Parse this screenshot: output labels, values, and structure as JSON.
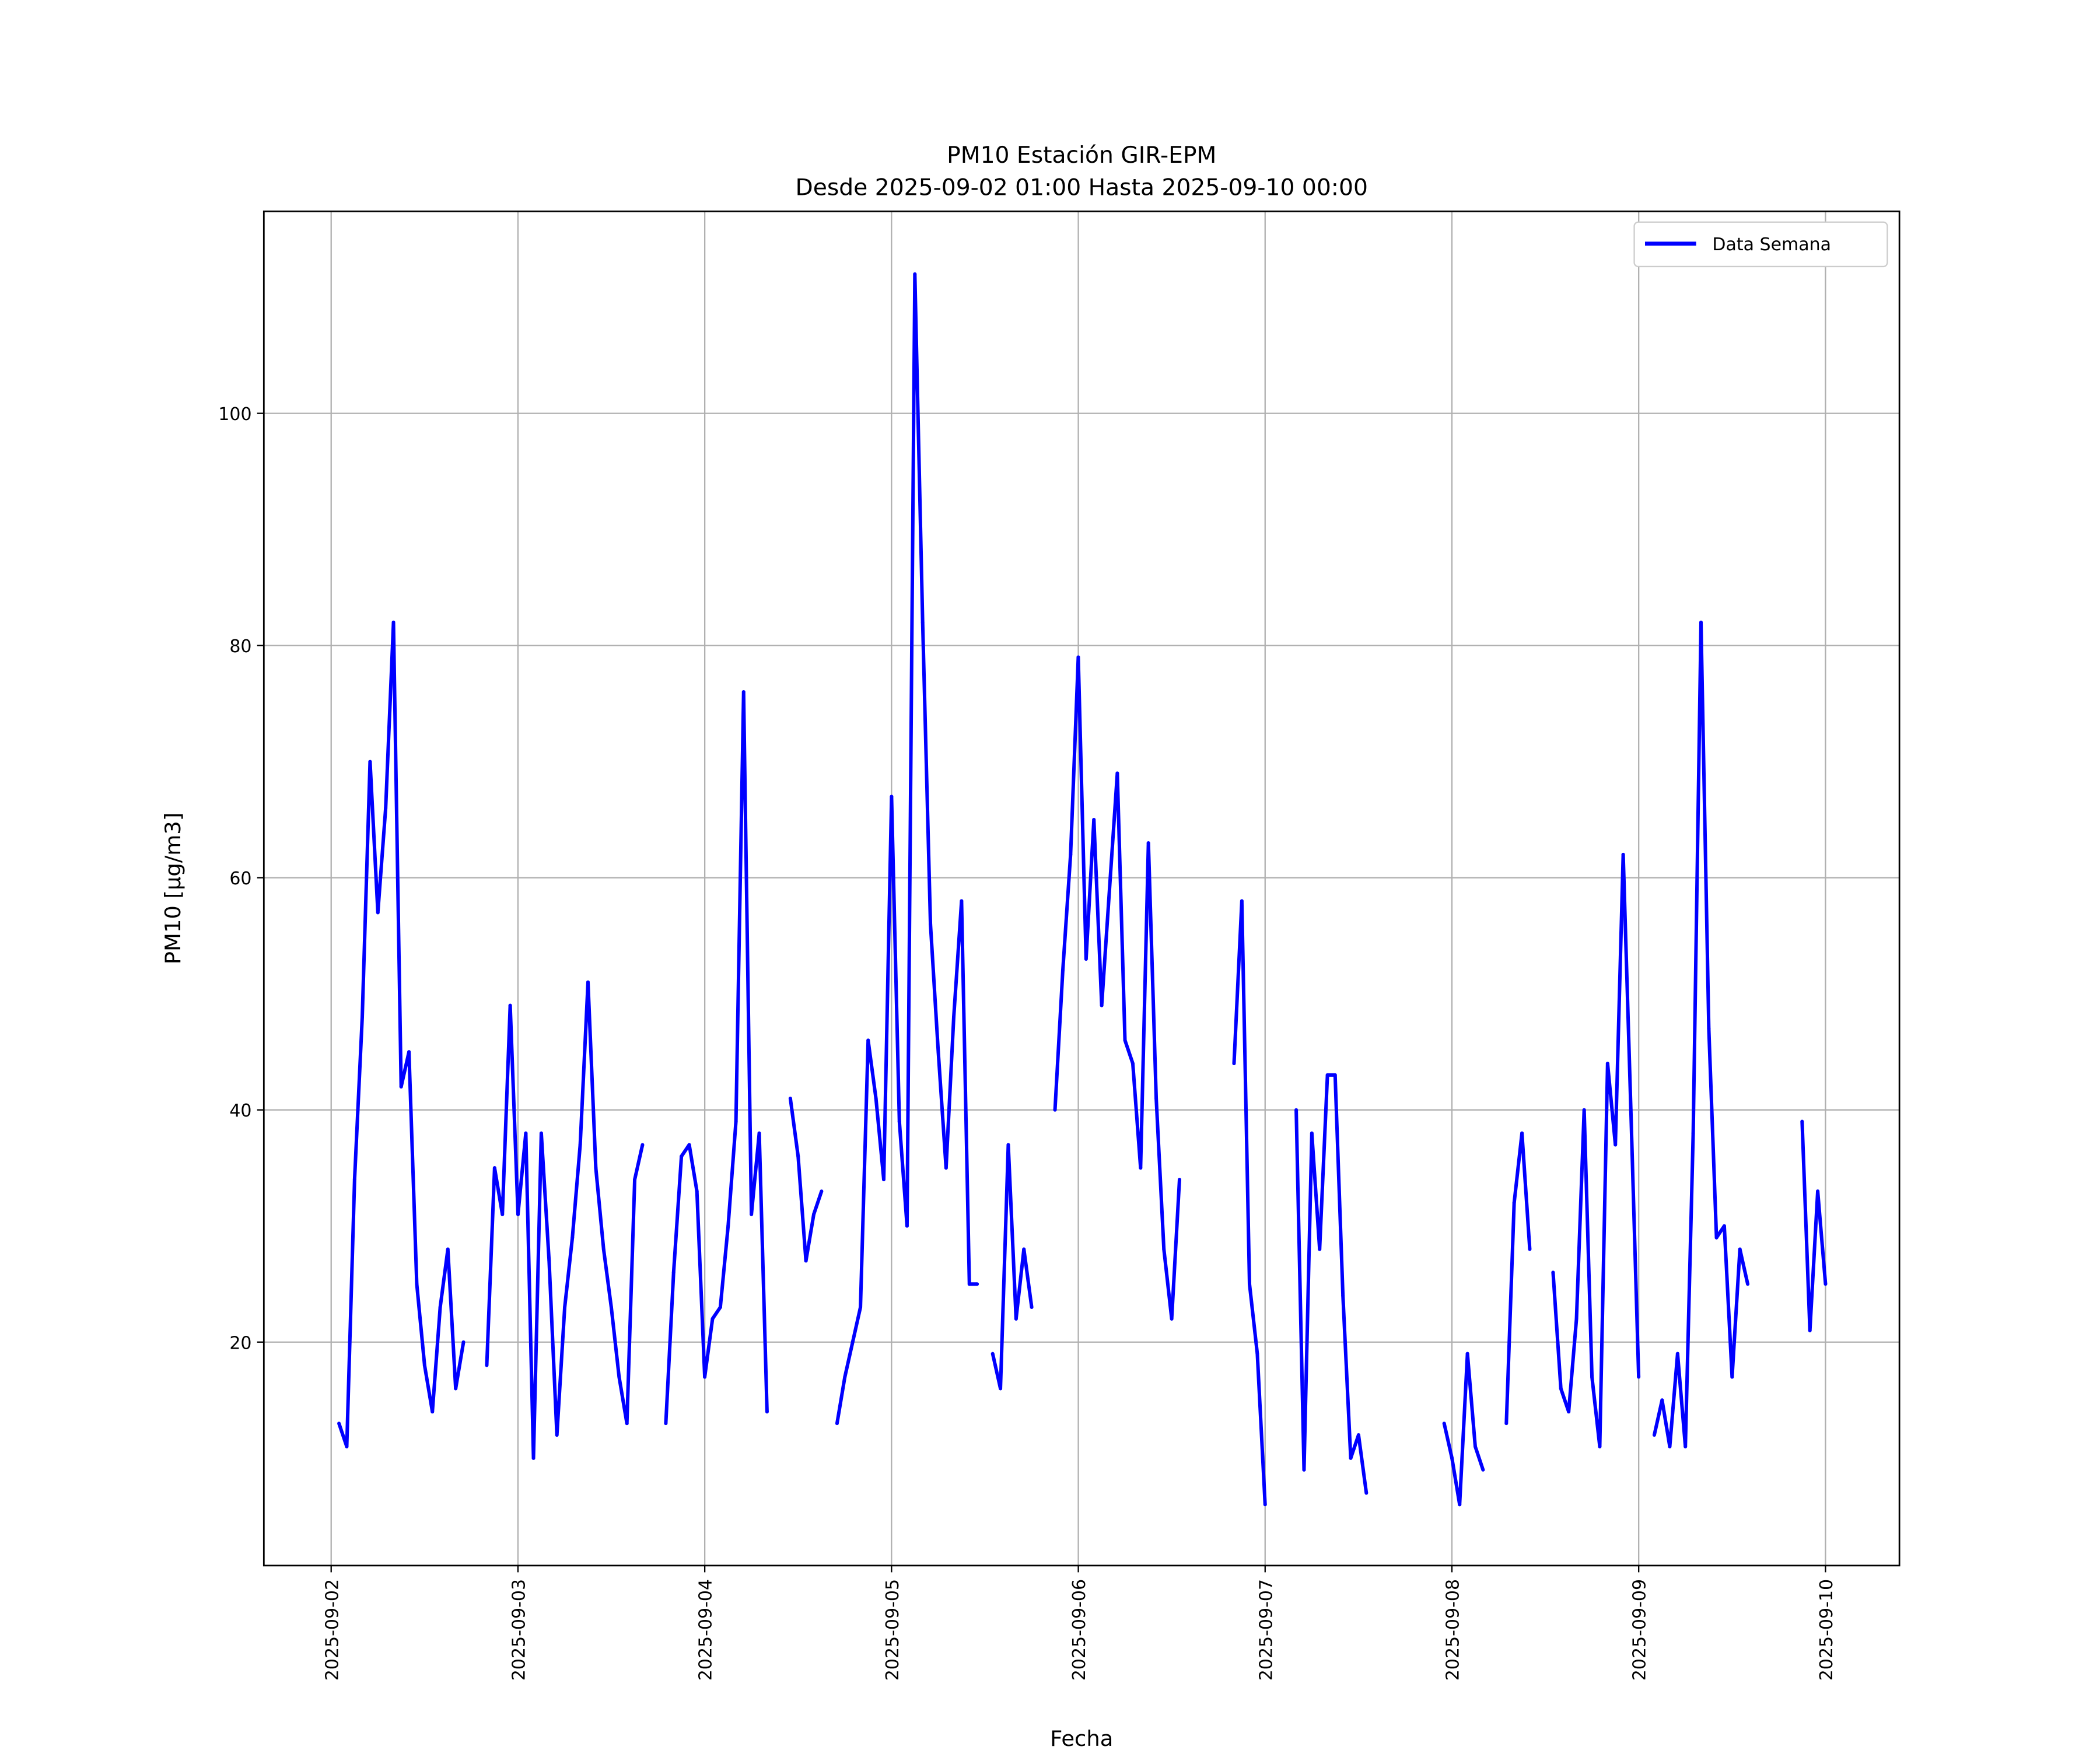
{
  "chart_data": {
    "type": "line",
    "title": "PM10 Estación GIR-EPM",
    "subtitle": "Desde 2025-09-02 01:00 Hasta 2025-09-10 00:00",
    "xlabel": "Fecha",
    "ylabel": "PM10 [μg/m3]",
    "xlim": [
      "2025-09-01 15:21",
      "2025-09-10 09:30"
    ],
    "ylim": [
      0.75,
      117.4
    ],
    "grid": true,
    "legend_placement": "top-right",
    "x_ticks": [
      "2025-09-02",
      "2025-09-03",
      "2025-09-04",
      "2025-09-05",
      "2025-09-06",
      "2025-09-07",
      "2025-09-08",
      "2025-09-09",
      "2025-09-10"
    ],
    "y_ticks": [
      20,
      40,
      60,
      80,
      100
    ],
    "series": [
      {
        "name": "Data Semana",
        "color": "#0000ff",
        "x": [
          "2025-09-02 01:00",
          "2025-09-02 02:00",
          "2025-09-02 03:00",
          "2025-09-02 04:00",
          "2025-09-02 05:00",
          "2025-09-02 06:00",
          "2025-09-02 07:00",
          "2025-09-02 08:00",
          "2025-09-02 09:00",
          "2025-09-02 10:00",
          "2025-09-02 11:00",
          "2025-09-02 12:00",
          "2025-09-02 13:00",
          "2025-09-02 14:00",
          "2025-09-02 15:00",
          "2025-09-02 16:00",
          "2025-09-02 17:00",
          "2025-09-02 18:00",
          "2025-09-02 19:00",
          "2025-09-02 20:00",
          "2025-09-02 21:00",
          "2025-09-02 22:00",
          "2025-09-02 23:00",
          "2025-09-03 00:00",
          "2025-09-03 01:00",
          "2025-09-03 02:00",
          "2025-09-03 03:00",
          "2025-09-03 04:00",
          "2025-09-03 05:00",
          "2025-09-03 06:00",
          "2025-09-03 07:00",
          "2025-09-03 08:00",
          "2025-09-03 09:00",
          "2025-09-03 10:00",
          "2025-09-03 11:00",
          "2025-09-03 12:00",
          "2025-09-03 13:00",
          "2025-09-03 14:00",
          "2025-09-03 15:00",
          "2025-09-03 16:00",
          "2025-09-03 17:00",
          "2025-09-03 18:00",
          "2025-09-03 19:00",
          "2025-09-03 20:00",
          "2025-09-03 21:00",
          "2025-09-03 22:00",
          "2025-09-03 23:00",
          "2025-09-04 00:00",
          "2025-09-04 01:00",
          "2025-09-04 02:00",
          "2025-09-04 03:00",
          "2025-09-04 04:00",
          "2025-09-04 05:00",
          "2025-09-04 06:00",
          "2025-09-04 07:00",
          "2025-09-04 08:00",
          "2025-09-04 09:00",
          "2025-09-04 10:00",
          "2025-09-04 11:00",
          "2025-09-04 12:00",
          "2025-09-04 13:00",
          "2025-09-04 14:00",
          "2025-09-04 15:00",
          "2025-09-04 16:00",
          "2025-09-04 17:00",
          "2025-09-04 18:00",
          "2025-09-04 19:00",
          "2025-09-04 20:00",
          "2025-09-04 21:00",
          "2025-09-04 22:00",
          "2025-09-04 23:00",
          "2025-09-05 00:00",
          "2025-09-05 01:00",
          "2025-09-05 02:00",
          "2025-09-05 03:00",
          "2025-09-05 04:00",
          "2025-09-05 05:00",
          "2025-09-05 06:00",
          "2025-09-05 07:00",
          "2025-09-05 08:00",
          "2025-09-05 09:00",
          "2025-09-05 10:00",
          "2025-09-05 11:00",
          "2025-09-05 12:00",
          "2025-09-05 13:00",
          "2025-09-05 14:00",
          "2025-09-05 15:00",
          "2025-09-05 16:00",
          "2025-09-05 17:00",
          "2025-09-05 18:00",
          "2025-09-05 19:00",
          "2025-09-05 20:00",
          "2025-09-05 21:00",
          "2025-09-05 22:00",
          "2025-09-05 23:00",
          "2025-09-06 00:00",
          "2025-09-06 01:00",
          "2025-09-06 02:00",
          "2025-09-06 03:00",
          "2025-09-06 04:00",
          "2025-09-06 05:00",
          "2025-09-06 06:00",
          "2025-09-06 07:00",
          "2025-09-06 08:00",
          "2025-09-06 09:00",
          "2025-09-06 10:00",
          "2025-09-06 11:00",
          "2025-09-06 12:00",
          "2025-09-06 13:00",
          "2025-09-06 14:00",
          "2025-09-06 15:00",
          "2025-09-06 16:00",
          "2025-09-06 17:00",
          "2025-09-06 18:00",
          "2025-09-06 19:00",
          "2025-09-06 20:00",
          "2025-09-06 21:00",
          "2025-09-06 22:00",
          "2025-09-06 23:00",
          "2025-09-07 00:00",
          "2025-09-07 01:00",
          "2025-09-07 02:00",
          "2025-09-07 03:00",
          "2025-09-07 04:00",
          "2025-09-07 05:00",
          "2025-09-07 06:00",
          "2025-09-07 07:00",
          "2025-09-07 08:00",
          "2025-09-07 09:00",
          "2025-09-07 10:00",
          "2025-09-07 11:00",
          "2025-09-07 12:00",
          "2025-09-07 13:00",
          "2025-09-07 14:00",
          "2025-09-07 15:00",
          "2025-09-07 16:00",
          "2025-09-07 17:00",
          "2025-09-07 18:00",
          "2025-09-07 19:00",
          "2025-09-07 20:00",
          "2025-09-07 21:00",
          "2025-09-07 22:00",
          "2025-09-07 23:00",
          "2025-09-08 00:00",
          "2025-09-08 01:00",
          "2025-09-08 02:00",
          "2025-09-08 03:00",
          "2025-09-08 04:00",
          "2025-09-08 05:00",
          "2025-09-08 06:00",
          "2025-09-08 07:00",
          "2025-09-08 08:00",
          "2025-09-08 09:00",
          "2025-09-08 10:00",
          "2025-09-08 11:00",
          "2025-09-08 12:00",
          "2025-09-08 13:00",
          "2025-09-08 14:00",
          "2025-09-08 15:00",
          "2025-09-08 16:00",
          "2025-09-08 17:00",
          "2025-09-08 18:00",
          "2025-09-08 19:00",
          "2025-09-08 20:00",
          "2025-09-08 21:00",
          "2025-09-08 22:00",
          "2025-09-08 23:00",
          "2025-09-09 00:00",
          "2025-09-09 01:00",
          "2025-09-09 02:00",
          "2025-09-09 03:00",
          "2025-09-09 04:00",
          "2025-09-09 05:00",
          "2025-09-09 06:00",
          "2025-09-09 07:00",
          "2025-09-09 08:00",
          "2025-09-09 09:00",
          "2025-09-09 10:00",
          "2025-09-09 11:00",
          "2025-09-09 12:00",
          "2025-09-09 13:00",
          "2025-09-09 14:00",
          "2025-09-09 15:00",
          "2025-09-09 16:00",
          "2025-09-09 17:00",
          "2025-09-09 18:00",
          "2025-09-09 19:00",
          "2025-09-09 20:00",
          "2025-09-09 21:00",
          "2025-09-09 22:00",
          "2025-09-09 23:00",
          "2025-09-10 00:00"
        ],
        "y": [
          13,
          11,
          34,
          48,
          70,
          57,
          66,
          82,
          42,
          45,
          25,
          18,
          14,
          23,
          28,
          16,
          20,
          null,
          null,
          18,
          35,
          31,
          49,
          31,
          38,
          10,
          38,
          27,
          12,
          23,
          29,
          37,
          51,
          35,
          28,
          23,
          17,
          13,
          34,
          37,
          null,
          null,
          13,
          26,
          36,
          37,
          33,
          17,
          22,
          23,
          30,
          39,
          76,
          31,
          38,
          14,
          null,
          null,
          41,
          36,
          27,
          31,
          33,
          null,
          13,
          17,
          20,
          23,
          46,
          41,
          34,
          67,
          39,
          30,
          112,
          82,
          56,
          45,
          35,
          48,
          58,
          25,
          25,
          null,
          19,
          16,
          37,
          22,
          28,
          23,
          null,
          null,
          40,
          52,
          62,
          79,
          53,
          65,
          49,
          59,
          69,
          46,
          44,
          35,
          63,
          41,
          28,
          22,
          34,
          null,
          null,
          null,
          null,
          null,
          null,
          44,
          58,
          25,
          19,
          6,
          null,
          null,
          null,
          40,
          9,
          38,
          28,
          43,
          43,
          24,
          10,
          12,
          7,
          null,
          null,
          null,
          null,
          null,
          null,
          null,
          null,
          null,
          13,
          10,
          6,
          19,
          11,
          9,
          null,
          null,
          13,
          32,
          38,
          28,
          null,
          null,
          26,
          16,
          14,
          22,
          40,
          17,
          11,
          44,
          37,
          62,
          40,
          17,
          null,
          12,
          15,
          11,
          19,
          11,
          38,
          82,
          47,
          29,
          30,
          17,
          28,
          25,
          null,
          null,
          null,
          null,
          null,
          null,
          39,
          21,
          33,
          25
        ]
      }
    ]
  }
}
